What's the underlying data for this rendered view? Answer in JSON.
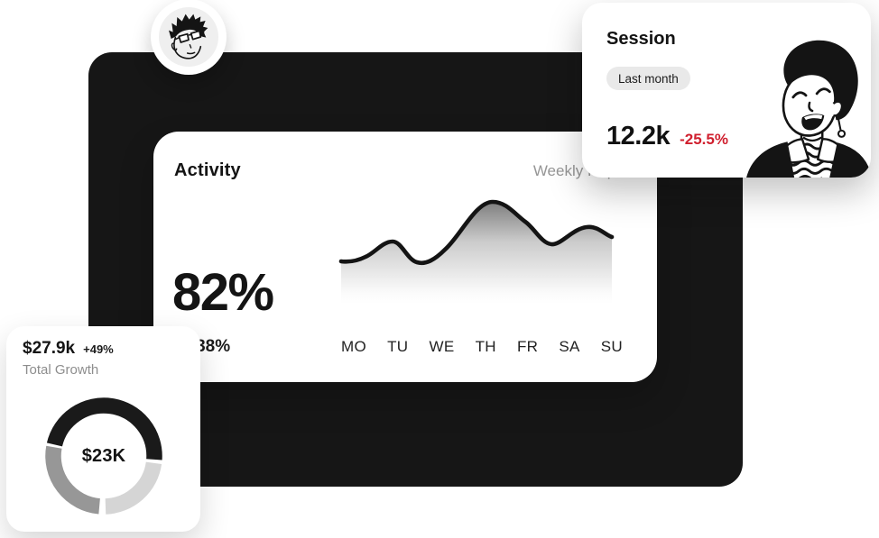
{
  "page": {
    "background": "#ffffff",
    "backdrop_color": "#161616"
  },
  "activity_card": {
    "title": "Activity",
    "subtitle": "Weekly Report",
    "percent": "82%",
    "change": "+38%"
  },
  "session_card": {
    "title": "Session",
    "badge": "Last month",
    "value": "12.2k",
    "change": "-25.5%",
    "change_color": "#d01f2e"
  },
  "growth_card": {
    "value": "$27.9k",
    "change": "+49%",
    "label": "Total Growth",
    "center_label": "$23K"
  },
  "icons": {
    "avatar": "sunglasses-man-illustration",
    "session_art": "laughing-man-striped-scarf-illustration"
  },
  "chart_data": [
    {
      "type": "area",
      "title": "Activity",
      "subtitle": "Weekly Report",
      "headline_percent": "82%",
      "period_change": "+38%",
      "categories": [
        "MO",
        "TU",
        "WE",
        "TH",
        "FR",
        "SA",
        "SU"
      ],
      "values": [
        8,
        33,
        13,
        100,
        50,
        47,
        38
      ],
      "value_note": "relative activity, no y-axis shown; peak on TH",
      "line_color": "#141414",
      "fill": "gray-to-transparent vertical gradient",
      "grid": false,
      "legend": false,
      "line_path": "M 8 80 C 16 81 25 80 35 75 C 45 71 54 58 65 58 C 75 58 81 78 92 81 C 102 84 112 78 123 67 C 140 52 157 14 176 14 C 191 14 201 28 212 36 C 222 43 230 60 241 61 C 252 62 264 44 280 42 C 292 40 301 51 308 53",
      "x_range": [
        8,
        308
      ],
      "baseline": 140
    },
    {
      "type": "donut",
      "center_label": "$23K",
      "kpi_value": "$27.9k",
      "kpi_change": "+49%",
      "kpi_label": "Total Growth",
      "cx": 75,
      "cy": 75,
      "r": 56,
      "stroke_width": 17.5,
      "segments": [
        {
          "name": "segment-dark",
          "color": "#1a1a1a",
          "start": 193,
          "end": 364,
          "pct": 47.5
        },
        {
          "name": "segment-light",
          "color": "#d5d5d5",
          "start": 8,
          "end": 88,
          "pct": 22.0
        },
        {
          "name": "segment-medium",
          "color": "#979797",
          "start": 95,
          "end": 190,
          "pct": 26.5
        }
      ]
    }
  ]
}
